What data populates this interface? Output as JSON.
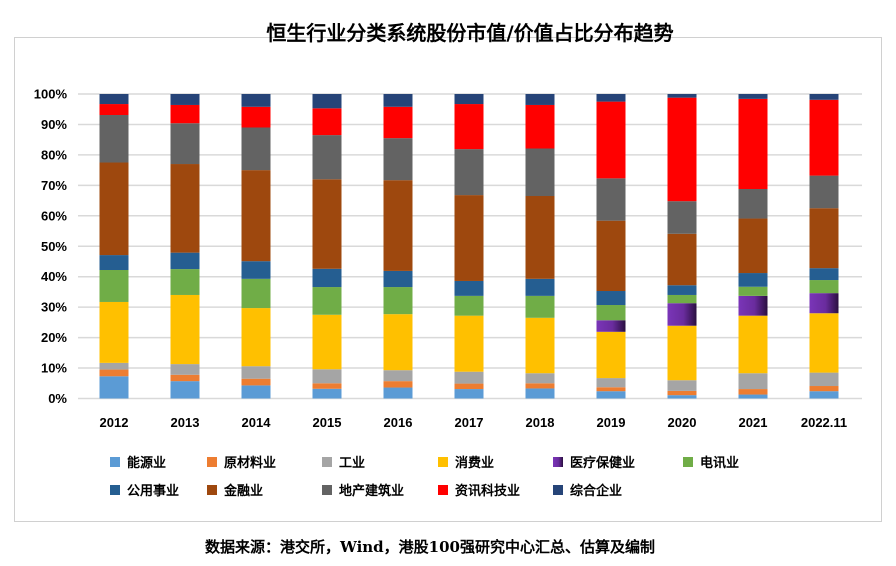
{
  "chart_data": {
    "type": "bar",
    "stacked": true,
    "percent_stacked": true,
    "title": "恒生行业分类系统股份市值/价值占比分布趋势",
    "xlabel": "",
    "ylabel": "",
    "ylim": [
      0,
      100
    ],
    "yticks": [
      "0%",
      "10%",
      "20%",
      "30%",
      "40%",
      "50%",
      "60%",
      "70%",
      "80%",
      "90%",
      "100%"
    ],
    "grid": true,
    "legend_position": "bottom",
    "categories": [
      "2012",
      "2013",
      "2014",
      "2015",
      "2016",
      "2017",
      "2018",
      "2019",
      "2020",
      "2021",
      "2022.11"
    ],
    "series": [
      {
        "name": "能源业",
        "color": "#5B9BD5",
        "values": [
          7.3,
          5.7,
          4.3,
          3.2,
          3.6,
          3.1,
          3.3,
          2.4,
          1.1,
          1.3,
          2.4
        ]
      },
      {
        "name": "原材料业",
        "color": "#ED7D31",
        "values": [
          2.2,
          2.1,
          2.2,
          1.8,
          2.1,
          1.8,
          1.7,
          1.3,
          1.4,
          1.8,
          1.7
        ]
      },
      {
        "name": "工业",
        "color": "#A5A5A5",
        "values": [
          2.2,
          3.5,
          4.1,
          4.6,
          3.6,
          3.9,
          3.3,
          3.0,
          3.5,
          5.2,
          4.4
        ]
      },
      {
        "name": "消费业",
        "color": "#FFC000",
        "values": [
          20.0,
          22.7,
          19.1,
          17.9,
          18.4,
          18.4,
          18.2,
          15.2,
          17.9,
          18.9,
          19.5
        ]
      },
      {
        "name": "医疗保健业",
        "color": "#7030A0",
        "values": [
          0,
          0,
          0,
          0,
          0,
          0,
          0,
          3.8,
          7.4,
          6.5,
          6.6
        ]
      },
      {
        "name": "电讯业",
        "color": "#70AD47",
        "values": [
          10.5,
          8.5,
          9.6,
          9.1,
          8.9,
          6.5,
          7.2,
          5.0,
          2.7,
          3.0,
          4.3
        ]
      },
      {
        "name": "公用事业",
        "color": "#255E91",
        "values": [
          4.9,
          5.4,
          5.8,
          6.0,
          5.3,
          4.9,
          5.6,
          4.6,
          3.2,
          4.5,
          3.9
        ]
      },
      {
        "name": "金融业",
        "color": "#9E480E",
        "values": [
          30.4,
          29.1,
          29.9,
          29.4,
          29.8,
          28.2,
          27.2,
          23.1,
          16.9,
          17.9,
          19.7
        ]
      },
      {
        "name": "地产建筑业",
        "color": "#636363",
        "values": [
          15.6,
          13.4,
          14.0,
          14.5,
          13.8,
          15.1,
          15.6,
          13.9,
          10.7,
          9.7,
          10.7
        ]
      },
      {
        "name": "资讯科技业",
        "color": "#FF0000",
        "values": [
          3.6,
          6.0,
          6.8,
          8.8,
          10.3,
          14.8,
          14.3,
          25.2,
          34.0,
          29.6,
          24.9
        ]
      },
      {
        "name": "综合企业",
        "color": "#264478",
        "values": [
          3.3,
          3.6,
          4.2,
          4.7,
          4.2,
          3.3,
          3.6,
          2.5,
          1.2,
          1.6,
          1.9
        ]
      }
    ],
    "source_note": "数据来源：港交所，Wind，港股100强研究中心汇总、估算及编制"
  }
}
